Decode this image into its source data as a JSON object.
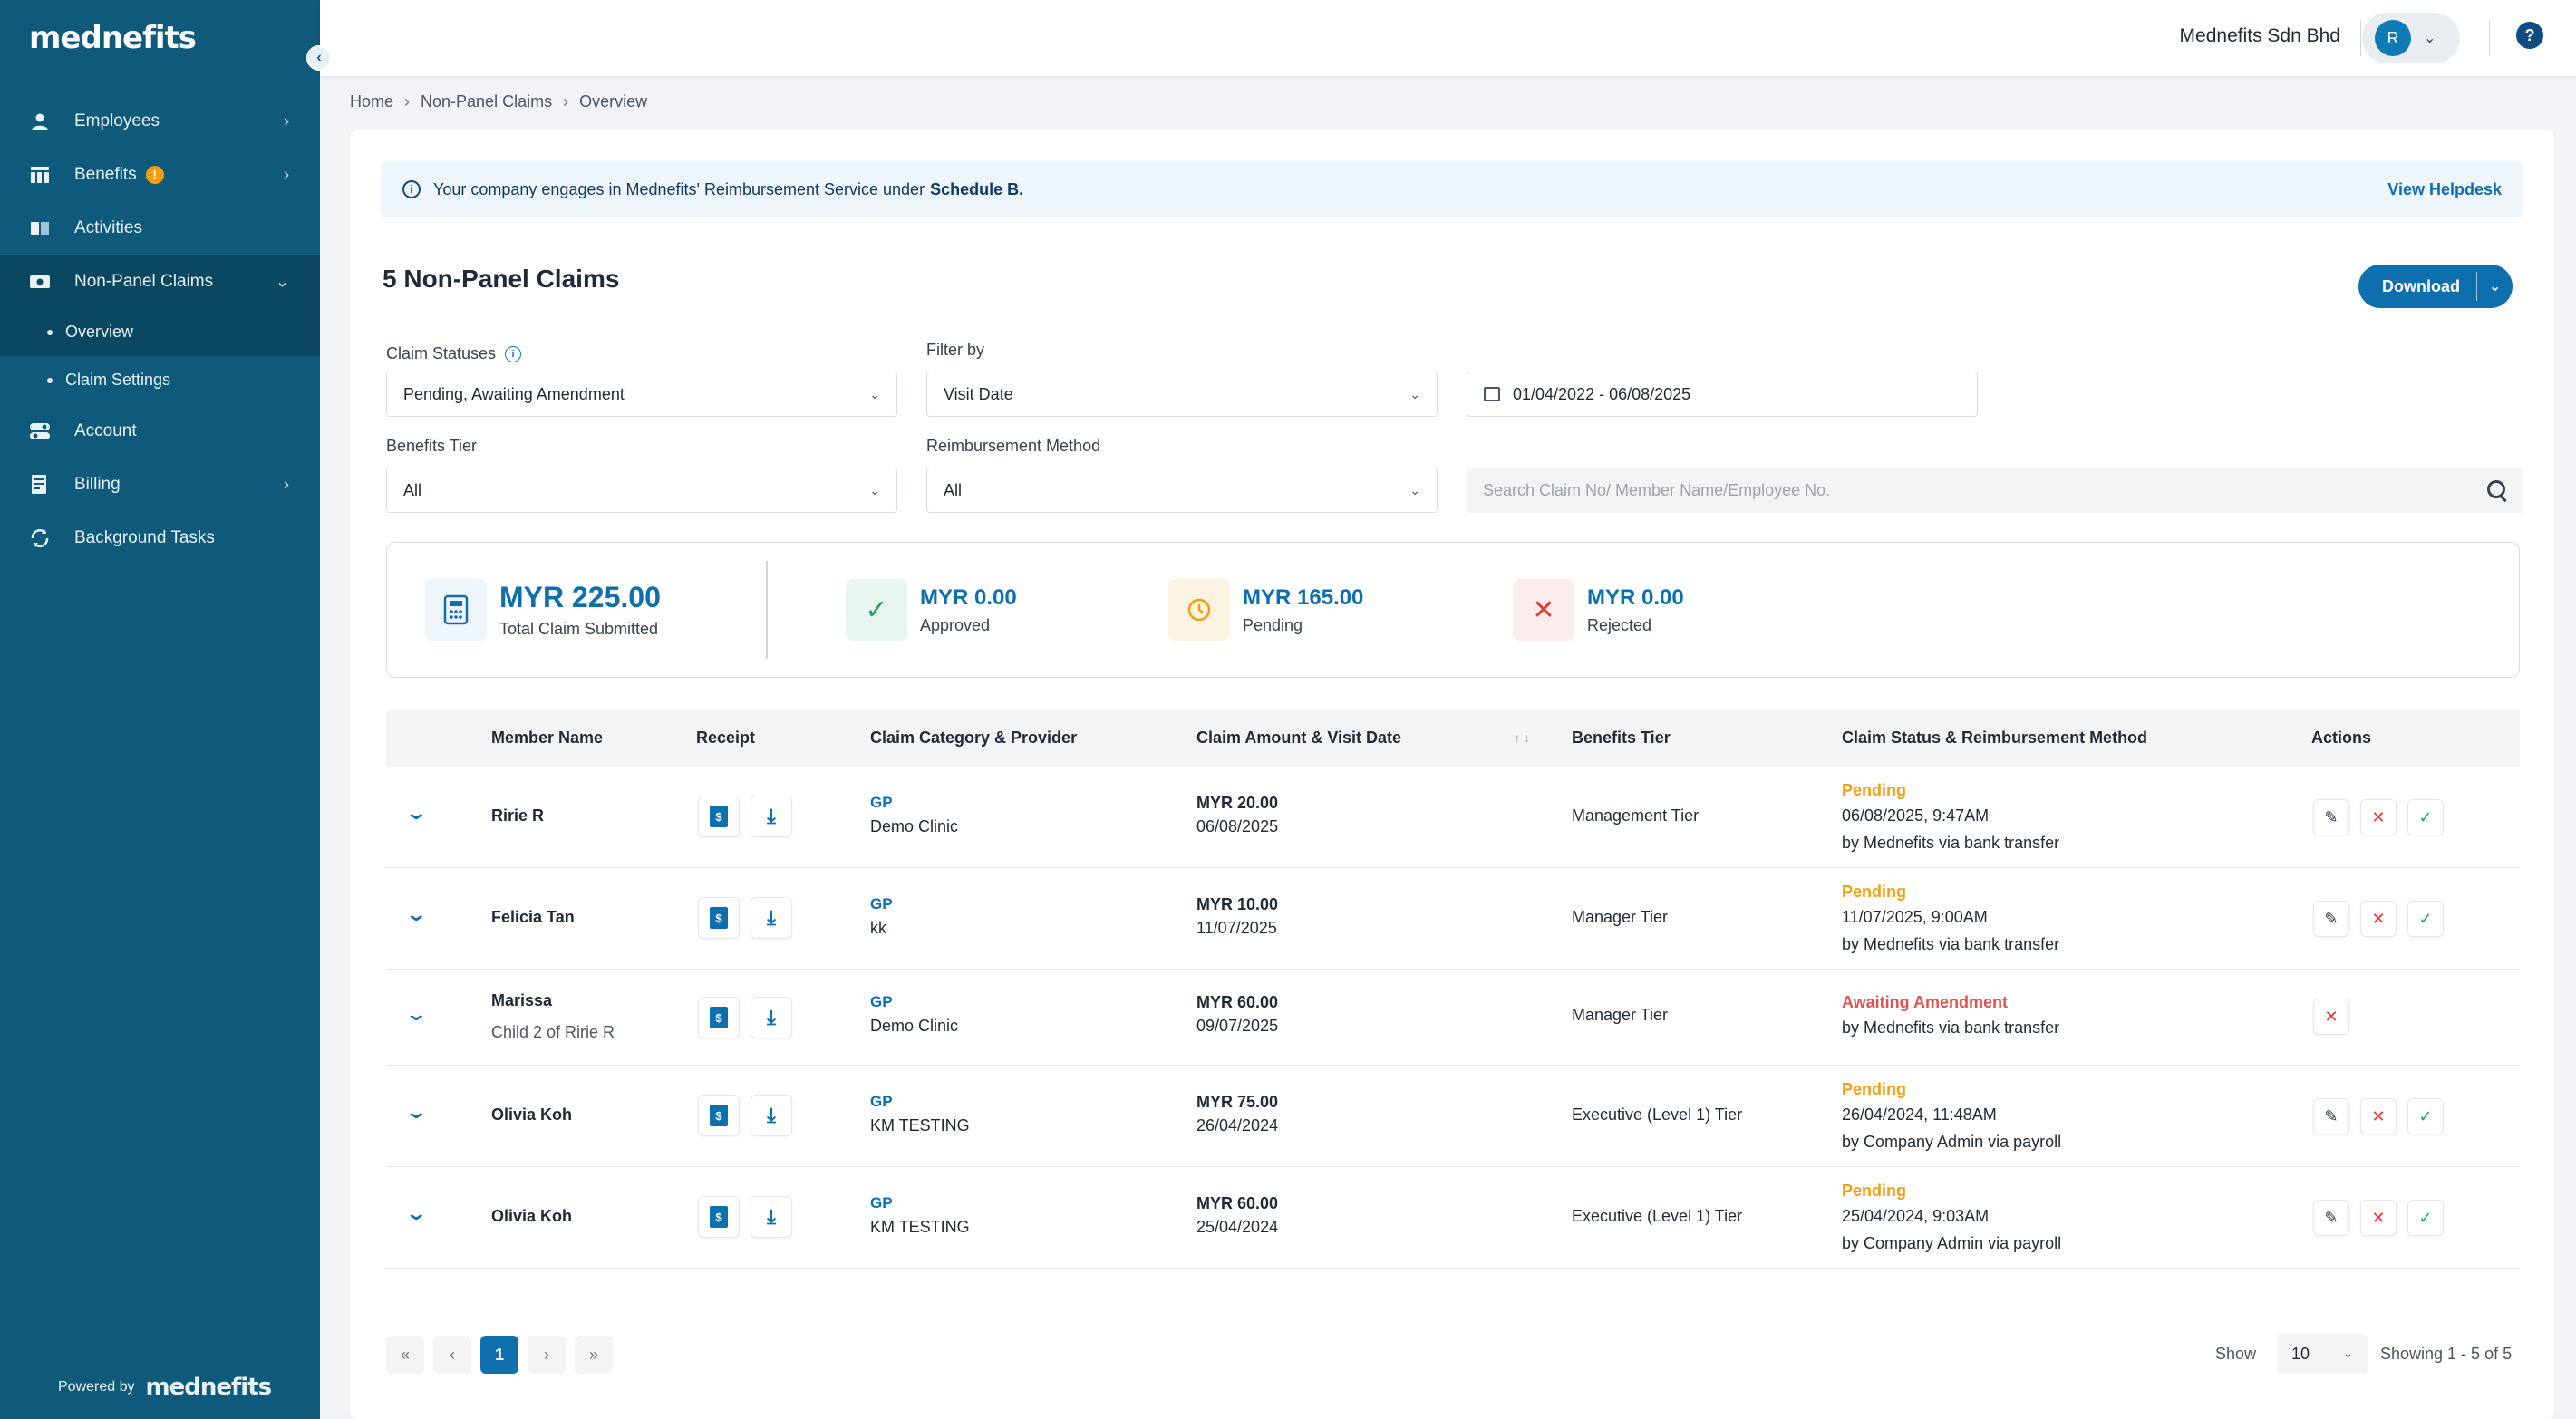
{
  "sidebar": {
    "logo": "mednefits",
    "items": [
      {
        "label": "Employees",
        "icon": "user-icon"
      },
      {
        "label": "Benefits",
        "badge": "!",
        "icon": "table-icon"
      },
      {
        "label": "Activities",
        "icon": "book-icon"
      },
      {
        "label": "Non-Panel Claims",
        "icon": "cash-icon"
      },
      {
        "label": "Account",
        "icon": "toggle-icon"
      },
      {
        "label": "Billing",
        "icon": "invoice-icon"
      },
      {
        "label": "Background Tasks",
        "icon": "sync-icon"
      }
    ],
    "sub_items": [
      {
        "label": "Overview"
      },
      {
        "label": "Claim Settings"
      }
    ],
    "powered_by": "Powered by",
    "powered_logo": "mednefits"
  },
  "topbar": {
    "company": "Mednefits Sdn Bhd",
    "avatar_initial": "R",
    "help": "?"
  },
  "breadcrumb": [
    "Home",
    "Non-Panel Claims",
    "Overview"
  ],
  "info": {
    "text": "Your company engages in Mednefits' Reimbursement Service under",
    "schedule": "Schedule B.",
    "link": "View Helpdesk"
  },
  "page": {
    "title": "5 Non-Panel Claims",
    "download": "Download"
  },
  "filters": {
    "claim_statuses_label": "Claim Statuses",
    "claim_statuses_value": "Pending, Awaiting Amendment",
    "filter_by_label": "Filter by",
    "filter_by_value": "Visit Date",
    "date_range": "01/04/2022 - 06/08/2025",
    "benefits_tier_label": "Benefits Tier",
    "benefits_tier_value": "All",
    "reimbursement_label": "Reimbursement Method",
    "reimbursement_value": "All",
    "search_placeholder": "Search Claim No/ Member Name/Employee No."
  },
  "summary": {
    "total_value": "MYR 225.00",
    "total_label": "Total Claim Submitted",
    "approved_value": "MYR 0.00",
    "approved_label": "Approved",
    "pending_value": "MYR 165.00",
    "pending_label": "Pending",
    "rejected_value": "MYR 0.00",
    "rejected_label": "Rejected"
  },
  "table": {
    "headers": {
      "member": "Member Name",
      "receipt": "Receipt",
      "category": "Claim Category & Provider",
      "amount": "Claim Amount & Visit Date",
      "tier": "Benefits Tier",
      "status": "Claim Status & Reimbursement Method",
      "actions": "Actions"
    },
    "rows": [
      {
        "name": "Ririe R",
        "sub": "",
        "category": "GP",
        "provider": "Demo Clinic",
        "amount": "MYR 20.00",
        "date": "06/08/2025",
        "tier": "Management Tier",
        "status": "Pending",
        "status_date": "06/08/2025, 9:47AM",
        "method": "by Mednefits via bank transfer"
      },
      {
        "name": "Felicia Tan",
        "sub": "",
        "category": "GP",
        "provider": "kk",
        "amount": "MYR 10.00",
        "date": "11/07/2025",
        "tier": "Manager Tier",
        "status": "Pending",
        "status_date": "11/07/2025, 9:00AM",
        "method": "by Mednefits via bank transfer"
      },
      {
        "name": "Marissa",
        "sub": "Child 2 of Ririe R",
        "category": "GP",
        "provider": "Demo Clinic",
        "amount": "MYR 60.00",
        "date": "09/07/2025",
        "tier": "Manager Tier",
        "status": "Awaiting Amendment",
        "status_date": "",
        "method": "by Mednefits via bank transfer"
      },
      {
        "name": "Olivia Koh",
        "sub": "",
        "category": "GP",
        "provider": "KM TESTING",
        "amount": "MYR 75.00",
        "date": "26/04/2024",
        "tier": "Executive (Level 1) Tier",
        "status": "Pending",
        "status_date": "26/04/2024, 11:48AM",
        "method": "by Company Admin via payroll"
      },
      {
        "name": "Olivia Koh",
        "sub": "",
        "category": "GP",
        "provider": "KM TESTING",
        "amount": "MYR 60.00",
        "date": "25/04/2024",
        "tier": "Executive (Level 1) Tier",
        "status": "Pending",
        "status_date": "25/04/2024, 9:03AM",
        "method": "by Company Admin via payroll"
      }
    ]
  },
  "pagination": {
    "current": "1",
    "show_label": "Show",
    "page_size": "10",
    "showing": "Showing 1 - 5 of 5"
  }
}
